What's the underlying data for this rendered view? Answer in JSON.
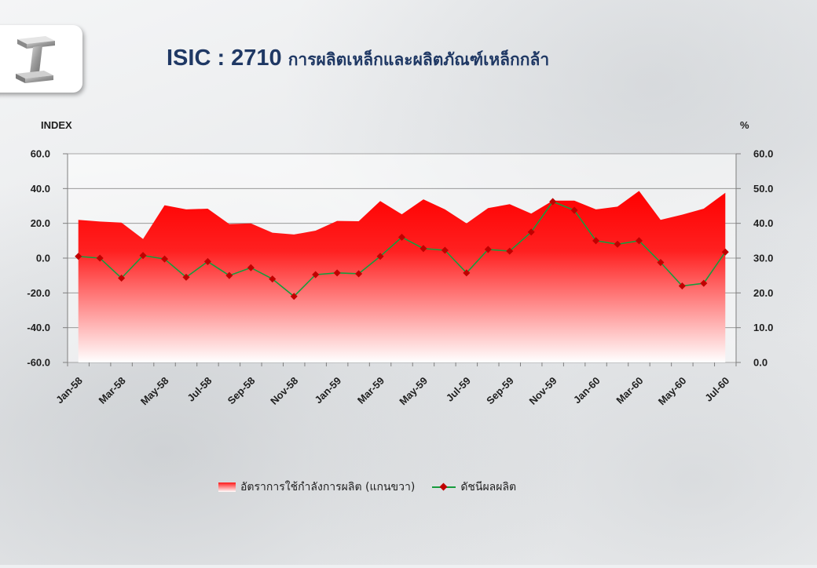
{
  "header": {
    "code": "ISIC : 2710",
    "name": "การผลิตเหล็กและผลิตภัณฑ์เหล็กกล้า",
    "logo_icon": "steel-beam-icon"
  },
  "chart_data": {
    "type": "line",
    "title": "ISIC : 2710 การผลิตเหล็กและผลิตภัณฑ์เหล็กกล้า",
    "left_axis_title": "INDEX",
    "right_axis_title": "%",
    "ylim_left": [
      -60,
      60
    ],
    "ylim_right": [
      0,
      60
    ],
    "left_ticks": [
      "60.0",
      "40.0",
      "20.0",
      "0.0",
      "-20.0",
      "-40.0",
      "-60.0"
    ],
    "right_ticks": [
      "60.0",
      "50.0",
      "40.0",
      "30.0",
      "20.0",
      "10.0",
      "0.0"
    ],
    "categories": [
      "Jan-58",
      "Feb-58",
      "Mar-58",
      "Apr-58",
      "May-58",
      "Jun-58",
      "Jul-58",
      "Aug-58",
      "Sep-58",
      "Oct-58",
      "Nov-58",
      "Dec-58",
      "Jan-59",
      "Feb-59",
      "Mar-59",
      "Apr-59",
      "May-59",
      "Jun-59",
      "Jul-59",
      "Aug-59",
      "Sep-59",
      "Oct-59",
      "Nov-59",
      "Dec-59",
      "Jan-60",
      "Feb-60",
      "Mar-60",
      "Apr-60",
      "May-60",
      "Jun-60",
      "Jul-60"
    ],
    "tick_labels": [
      "Jan-58",
      "Mar-58",
      "May-58",
      "Jul-58",
      "Sep-58",
      "Nov-58",
      "Jan-59",
      "Mar-59",
      "May-59",
      "Jul-59",
      "Sep-59",
      "Nov-59",
      "Jan-60",
      "Mar-60",
      "May-60",
      "Jul-60"
    ],
    "series": [
      {
        "name": "อัตราการใช้กำลังการผลิต (แกนขวา)",
        "type": "area",
        "axis": "right",
        "color": "#ff1a1a",
        "values": [
          41.0,
          40.5,
          40.2,
          35.5,
          45.2,
          44.0,
          44.2,
          39.8,
          40.0,
          37.3,
          36.8,
          37.9,
          40.7,
          40.6,
          46.4,
          42.6,
          46.9,
          44.0,
          40.0,
          44.4,
          45.5,
          42.8,
          46.5,
          46.5,
          44.0,
          44.8,
          49.3,
          41.0,
          42.5,
          44.2,
          48.8
        ]
      },
      {
        "name": "ดัชนีผลผลิต",
        "type": "line",
        "axis": "left",
        "color": "#169c3d",
        "marker_color": "#c00000",
        "values": [
          1.0,
          0.0,
          -11.5,
          1.5,
          -0.5,
          -11.0,
          -2.0,
          -10.0,
          -5.5,
          -12.0,
          -22.0,
          -9.5,
          -8.5,
          -9.0,
          1.0,
          12.0,
          5.5,
          4.5,
          -8.5,
          5.0,
          4.0,
          15.0,
          32.5,
          27.5,
          10.0,
          8.0,
          10.0,
          -2.5,
          -16.0,
          -14.5,
          3.5
        ]
      }
    ],
    "grid": true,
    "legend_position": "bottom"
  }
}
